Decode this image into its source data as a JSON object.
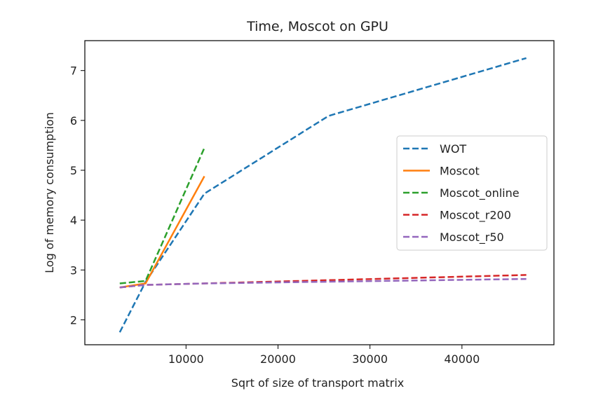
{
  "chart_data": {
    "type": "line",
    "title": "Time, Moscot on GPU",
    "xlabel": "Sqrt of size of transport matrix",
    "ylabel": "Log of memory consumption",
    "xlim": [
      -1000,
      50000
    ],
    "ylim": [
      1.5,
      7.6
    ],
    "xticks": [
      10000,
      20000,
      30000,
      40000
    ],
    "yticks": [
      2,
      3,
      4,
      5,
      6,
      7
    ],
    "grid": false,
    "legend_position": "center-right",
    "series": [
      {
        "name": "WOT",
        "style": "dashed",
        "color": "#1f77b4",
        "x": [
          2800,
          5600,
          12000,
          25500,
          47000
        ],
        "y": [
          1.75,
          2.76,
          4.53,
          6.09,
          7.25
        ]
      },
      {
        "name": "Moscot",
        "style": "solid",
        "color": "#ff7f0e",
        "x": [
          2800,
          5600,
          12000
        ],
        "y": [
          2.65,
          2.73,
          4.88
        ]
      },
      {
        "name": "Moscot_online",
        "style": "dashed",
        "color": "#2ca02c",
        "x": [
          2800,
          5600,
          12000
        ],
        "y": [
          2.73,
          2.78,
          5.45
        ]
      },
      {
        "name": "Moscot_r200",
        "style": "dashed",
        "color": "#d62728",
        "x": [
          2800,
          5600,
          12000,
          47000
        ],
        "y": [
          2.65,
          2.7,
          2.73,
          2.9
        ]
      },
      {
        "name": "Moscot_r50",
        "style": "dashed",
        "color": "#9467bd",
        "x": [
          2800,
          5600,
          12000,
          47000
        ],
        "y": [
          2.65,
          2.7,
          2.73,
          2.82
        ]
      }
    ]
  }
}
